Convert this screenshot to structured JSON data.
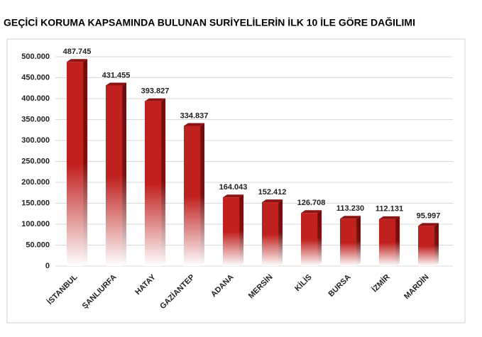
{
  "chart_data": {
    "type": "bar",
    "title": "GEÇİCİ KORUMA KAPSAMINDA BULUNAN SURİYELİLERİN İLK 10 İLE GÖRE DAĞILIMI",
    "categories": [
      "İSTANBUL",
      "ŞANLIURFA",
      "HATAY",
      "GAZİANTEP",
      "ADANA",
      "MERSİN",
      "KİLİS",
      "BURSA",
      "İZMİR",
      "MARDİN"
    ],
    "values": [
      487745,
      431455,
      393827,
      334837,
      164043,
      152412,
      126708,
      113230,
      112131,
      95997
    ],
    "value_labels": [
      "487.745",
      "431.455",
      "393.827",
      "334.837",
      "164.043",
      "152.412",
      "126.708",
      "113.230",
      "112.131",
      "95.997"
    ],
    "color": "#c0201e",
    "ylim": [
      0,
      500000
    ],
    "yticks": [
      0,
      {
        "value": 50000,
        "label": "50.000"
      },
      {
        "value": 100000,
        "label": "100.000"
      },
      {
        "value": 150000,
        "label": "150.000"
      },
      {
        "value": 200000,
        "label": "200.000"
      },
      {
        "value": 250000,
        "label": "250.000"
      },
      {
        "value": 300000,
        "label": "300.000"
      },
      {
        "value": 350000,
        "label": "350.000"
      },
      {
        "value": 400000,
        "label": "400.000"
      },
      {
        "value": 450000,
        "label": "450.000"
      },
      {
        "value": 500000,
        "label": "500.000"
      }
    ],
    "grid": true
  }
}
